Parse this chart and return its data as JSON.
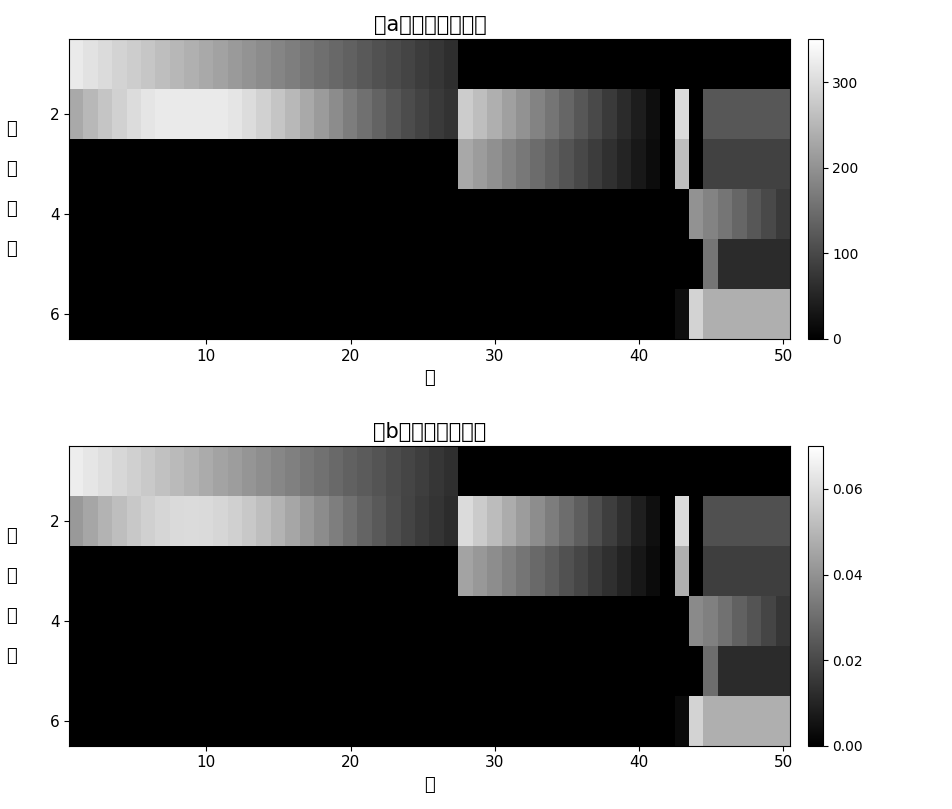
{
  "title_a": "（a）发射功率分配",
  "title_b": "（b）驻留时间分配",
  "xlabel": "帧",
  "ylabel_chars": [
    "雷",
    "达",
    "编",
    "号"
  ],
  "n_radars": 6,
  "n_frames": 50,
  "cbar_max_a": 350,
  "cbar_max_b": 0.07,
  "cbar_ticks_a": [
    0,
    100,
    200,
    300
  ],
  "cbar_ticks_b": [
    0,
    0.02,
    0.04,
    0.06
  ],
  "xticks": [
    10,
    20,
    30,
    40,
    50
  ],
  "yticks": [
    2,
    4,
    6
  ]
}
